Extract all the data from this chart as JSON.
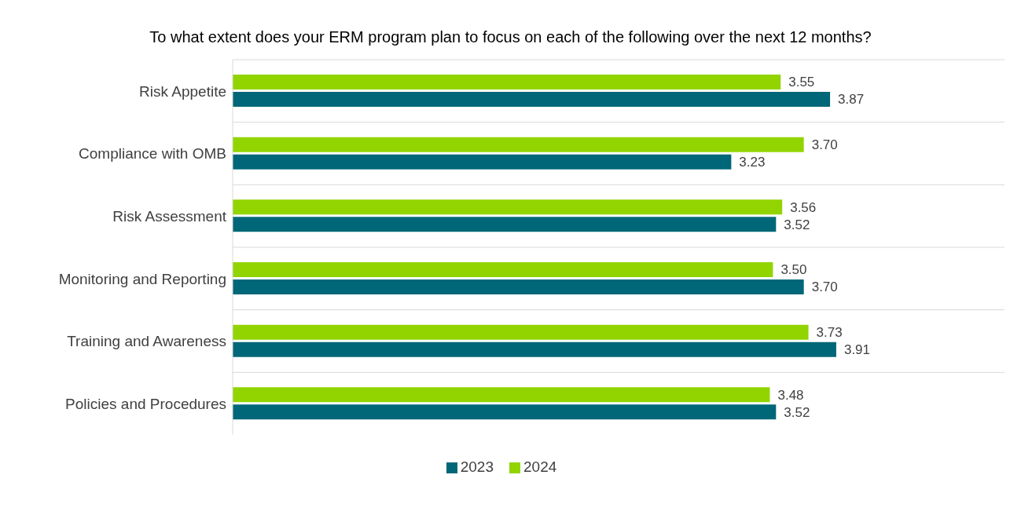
{
  "chart_data": {
    "type": "bar",
    "orientation": "horizontal",
    "title": "To what extent does your ERM program plan to focus on each of the following over the next 12 months?",
    "categories": [
      "Risk Appetite",
      "Compliance with OMB",
      "Risk Assessment",
      "Monitoring and Reporting",
      "Training and Awareness",
      "Policies and Procedures"
    ],
    "series": [
      {
        "name": "2024",
        "color": "#92d400",
        "values": [
          3.55,
          3.7,
          3.56,
          3.5,
          3.73,
          3.48
        ],
        "value_labels": [
          "3.55",
          "3.70",
          "3.56",
          "3.50",
          "3.73",
          "3.48"
        ]
      },
      {
        "name": "2023",
        "color": "#006778",
        "values": [
          3.87,
          3.23,
          3.52,
          3.7,
          3.91,
          3.52
        ],
        "value_labels": [
          "3.87",
          "3.23",
          "3.52",
          "3.70",
          "3.91",
          "3.52"
        ]
      }
    ],
    "xlim": [
      0,
      5
    ],
    "tick_labels": "y",
    "grid": "y",
    "legend": "bottom"
  }
}
